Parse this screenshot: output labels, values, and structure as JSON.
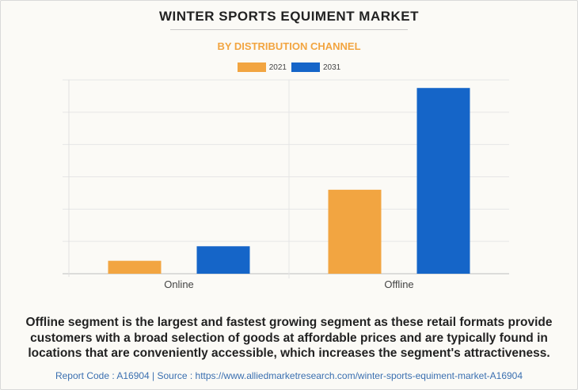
{
  "title": "WINTER SPORTS EQUIMENT MARKET",
  "subtitle": "BY DISTRIBUTION CHANNEL",
  "caption": "Offline segment is the largest and fastest growing segment as these retail formats provide customers with a broad selection of goods at affordable prices and are typically found in locations that are conveniently accessible, which increases the segment's attractiveness.",
  "footer": "Report Code : A16904  |  Source : https://www.alliedmarketresearch.com/winter-sports-equiment-market-A16904",
  "colors": {
    "2021": "#f2a541",
    "2031": "#1565c8",
    "subtitle": "#f2a541"
  },
  "chart_data": {
    "type": "bar",
    "categories": [
      "Online",
      "Offline"
    ],
    "series": [
      {
        "name": "2021",
        "values": [
          0.4,
          2.6
        ]
      },
      {
        "name": "2031",
        "values": [
          0.85,
          5.75
        ]
      }
    ],
    "ylim": [
      0,
      6
    ],
    "grid": true,
    "legend_position": "top-center",
    "y_tick_labels_visible": false
  }
}
